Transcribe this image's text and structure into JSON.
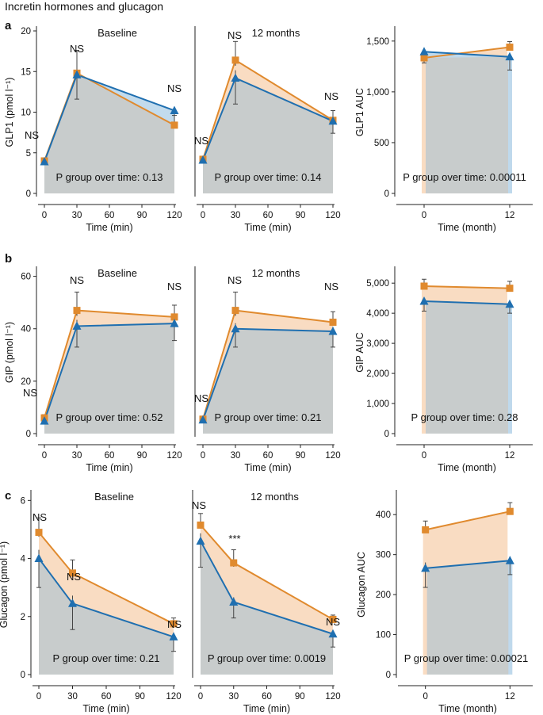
{
  "figure": {
    "title": "Incretin hormones and glucagon",
    "colors": {
      "orange": "#E08A2E",
      "blue": "#1F6FB0",
      "fill_orange": "#F9DCC2",
      "fill_blue": "#BFD9EC",
      "fill_overlap": "#C8CCCC"
    }
  },
  "panels": [
    {
      "letter": "a"
    },
    {
      "letter": "b"
    },
    {
      "letter": "c"
    }
  ],
  "chart_data": [
    {
      "id": "a1",
      "type": "line",
      "title": "Baseline",
      "xlabel": "Time (min)",
      "ylabel": "GLP1 (pmol l⁻¹)",
      "xlim": [
        0,
        120
      ],
      "ylim": [
        0,
        20
      ],
      "xticks": [
        0,
        30,
        60,
        90,
        120
      ],
      "yticks": [
        0,
        5,
        10,
        15,
        20
      ],
      "x": [
        0,
        30,
        120
      ],
      "series": [
        {
          "name": "orange",
          "values": [
            4.0,
            14.8,
            8.4
          ],
          "err": [
            0.3,
            2.8,
            1.2
          ]
        },
        {
          "name": "blue",
          "values": [
            3.9,
            14.6,
            10.2
          ],
          "err": [
            0.3,
            3.0,
            1.5
          ]
        }
      ],
      "labels": [
        "NS",
        "NS",
        "NS"
      ],
      "pgroup_text": "P group over time:  0.13"
    },
    {
      "id": "a2",
      "type": "line",
      "title": "12 months",
      "xlabel": "Time (min)",
      "ylabel": "",
      "xlim": [
        0,
        120
      ],
      "ylim": [
        0,
        20
      ],
      "xticks": [
        0,
        30,
        60,
        90,
        120
      ],
      "yticks": [],
      "x": [
        0,
        30,
        120
      ],
      "series": [
        {
          "name": "orange",
          "values": [
            4.2,
            16.4,
            9.0
          ],
          "err": [
            0.3,
            2.3,
            1.2
          ]
        },
        {
          "name": "blue",
          "values": [
            4.1,
            14.2,
            8.9
          ],
          "err": [
            0.3,
            3.2,
            1.5
          ]
        }
      ],
      "labels": [
        "NS",
        "NS",
        "NS"
      ],
      "pgroup_text": "P group over time:  0.14"
    },
    {
      "id": "a3",
      "type": "line",
      "title": "",
      "xlabel": "Time (month)",
      "ylabel": "GLP1 AUC",
      "xlim": [
        -3,
        15
      ],
      "ylim": [
        0,
        1600
      ],
      "xticks": [
        0,
        12
      ],
      "yticks": [
        0,
        500,
        1000,
        1500
      ],
      "ytick_labels": [
        "0",
        "500",
        "1,000",
        "1,500"
      ],
      "x": [
        0,
        12
      ],
      "series": [
        {
          "name": "orange",
          "values": [
            1335,
            1440
          ],
          "err": [
            55,
            55
          ]
        },
        {
          "name": "blue",
          "values": [
            1395,
            1345
          ],
          "err": [
            110,
            130
          ]
        }
      ],
      "labels": [],
      "pgroup_text": "P group over time:  0.00011"
    },
    {
      "id": "b1",
      "type": "line",
      "title": "Baseline",
      "xlabel": "Time (min)",
      "ylabel": "GIP (pmol l⁻¹)",
      "xlim": [
        0,
        120
      ],
      "ylim": [
        0,
        62
      ],
      "xticks": [
        0,
        30,
        60,
        90,
        120
      ],
      "yticks": [
        0,
        20,
        40,
        60
      ],
      "x": [
        0,
        30,
        120
      ],
      "series": [
        {
          "name": "orange",
          "values": [
            6.0,
            47.0,
            44.5
          ],
          "err": [
            1.2,
            7.0,
            4.5
          ]
        },
        {
          "name": "blue",
          "values": [
            4.8,
            41.0,
            42.0
          ],
          "err": [
            1.0,
            8.0,
            6.5
          ]
        }
      ],
      "labels": [
        "NS",
        "NS",
        "NS"
      ],
      "pgroup_text": "P group over time:  0.52"
    },
    {
      "id": "b2",
      "type": "line",
      "title": "12 months",
      "xlabel": "Time (min)",
      "ylabel": "",
      "xlim": [
        0,
        120
      ],
      "ylim": [
        0,
        62
      ],
      "xticks": [
        0,
        30,
        60,
        90,
        120
      ],
      "yticks": [],
      "x": [
        0,
        30,
        120
      ],
      "series": [
        {
          "name": "orange",
          "values": [
            5.5,
            47.0,
            42.5
          ],
          "err": [
            1.0,
            7.0,
            4.0
          ]
        },
        {
          "name": "blue",
          "values": [
            5.2,
            40.0,
            39.0
          ],
          "err": [
            1.0,
            7.0,
            6.0
          ]
        }
      ],
      "labels": [
        "NS",
        "NS",
        "NS"
      ],
      "pgroup_text": "P group over time:  0.21"
    },
    {
      "id": "b3",
      "type": "line",
      "title": "",
      "xlabel": "Time (month)",
      "ylabel": "GIP AUC",
      "xlim": [
        -3,
        15
      ],
      "ylim": [
        0,
        5400
      ],
      "xticks": [
        0,
        12
      ],
      "yticks": [
        0,
        1000,
        2000,
        3000,
        4000,
        5000
      ],
      "ytick_labels": [
        "0",
        "1,000",
        "2,000",
        "3,000",
        "4,000",
        "5,000"
      ],
      "x": [
        0,
        12
      ],
      "series": [
        {
          "name": "orange",
          "values": [
            4900,
            4830
          ],
          "err": [
            230,
            230
          ]
        },
        {
          "name": "blue",
          "values": [
            4400,
            4300
          ],
          "err": [
            330,
            300
          ]
        }
      ],
      "labels": [],
      "pgroup_text": "P group over time:  0.28"
    },
    {
      "id": "c1",
      "type": "line",
      "title": "Baseline",
      "xlabel": "Time (min)",
      "ylabel": "Glucagon (pmol l⁻¹)",
      "xlim": [
        0,
        120
      ],
      "ylim": [
        0,
        6.2
      ],
      "xticks": [
        0,
        30,
        60,
        90,
        120
      ],
      "yticks": [
        0,
        2,
        4,
        6
      ],
      "x": [
        0,
        30,
        120
      ],
      "series": [
        {
          "name": "orange",
          "values": [
            4.9,
            3.5,
            1.75
          ],
          "err": [
            0.5,
            0.45,
            0.2
          ]
        },
        {
          "name": "blue",
          "values": [
            4.0,
            2.45,
            1.3
          ],
          "err": [
            1.0,
            0.9,
            0.5
          ]
        }
      ],
      "labels": [
        "NS",
        "NS",
        "NS"
      ],
      "pgroup_text": "P group over time:  0.21"
    },
    {
      "id": "c2",
      "type": "line",
      "title": "12 months",
      "xlabel": "Time (min)",
      "ylabel": "",
      "xlim": [
        0,
        120
      ],
      "ylim": [
        0,
        6.2
      ],
      "xticks": [
        0,
        30,
        60,
        90,
        120
      ],
      "yticks": [],
      "x": [
        0,
        30,
        120
      ],
      "series": [
        {
          "name": "orange",
          "values": [
            5.15,
            3.85,
            1.9
          ],
          "err": [
            0.4,
            0.45,
            0.15
          ]
        },
        {
          "name": "blue",
          "values": [
            4.6,
            2.5,
            1.4
          ],
          "err": [
            0.9,
            0.55,
            0.45
          ]
        }
      ],
      "labels": [
        "NS",
        "***",
        "NS"
      ],
      "pgroup_text": "P group over time:  0.0019"
    },
    {
      "id": "c3",
      "type": "line",
      "title": "",
      "xlabel": "Time (month)",
      "ylabel": "Glucagon AUC",
      "xlim": [
        -3,
        15
      ],
      "ylim": [
        0,
        450
      ],
      "xticks": [
        0,
        12
      ],
      "yticks": [
        0,
        100,
        200,
        300,
        400
      ],
      "ytick_labels": [
        "0",
        "100",
        "200",
        "300",
        "400"
      ],
      "x": [
        0,
        12
      ],
      "series": [
        {
          "name": "orange",
          "values": [
            362,
            408
          ],
          "err": [
            22,
            22
          ]
        },
        {
          "name": "blue",
          "values": [
            266,
            285
          ],
          "err": [
            48,
            35
          ]
        }
      ],
      "labels": [],
      "pgroup_text": "P group over time:  0.00021"
    }
  ]
}
